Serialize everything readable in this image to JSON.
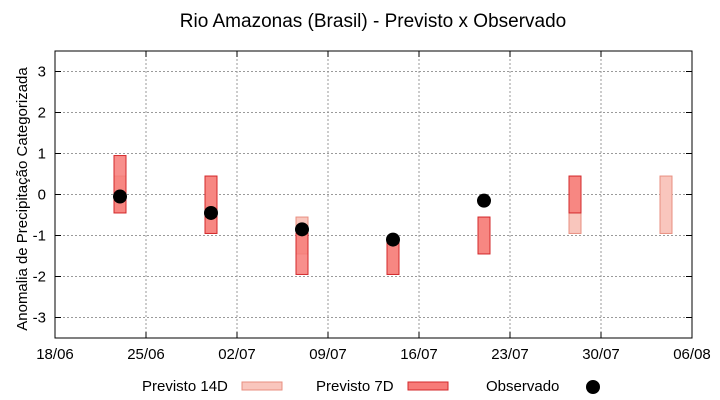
{
  "chart_data": {
    "type": "range-scatter",
    "title": "Rio Amazonas (Brasil) - Previsto x Observado",
    "xlabel": "",
    "ylabel": "Anomalia de Precipitação Categorizada",
    "ylim": [
      -3.5,
      3.5
    ],
    "yticks": [
      -3,
      -2,
      -1,
      0,
      1,
      2,
      3
    ],
    "xlim": [
      "2024-06-18",
      "2024-08-06"
    ],
    "xticks": [
      "18/06",
      "25/06",
      "02/07",
      "09/07",
      "16/07",
      "23/07",
      "30/07",
      "06/08"
    ],
    "grid": true,
    "legend_position": "bottom",
    "legend": {
      "p14": "Previsto 14D",
      "p7": "Previsto 7D",
      "obs": "Observado"
    },
    "colors": {
      "p14_fill": "#f9c6bd",
      "p14_stroke": "#e88f80",
      "p7_fill": "#f77b78",
      "p7_stroke": "#d3282b",
      "obs": "#000000"
    },
    "previsto_14d": [
      {
        "date": "2024-06-23",
        "low": -0.45,
        "high": 0.45
      },
      {
        "date": "2024-06-30",
        "low": -0.95,
        "high": 0.45
      },
      {
        "date": "2024-07-07",
        "low": -1.45,
        "high": -0.55
      },
      {
        "date": "2024-07-14",
        "low": -1.95,
        "high": -1.05
      },
      {
        "date": "2024-07-21",
        "low": -1.45,
        "high": -0.55
      },
      {
        "date": "2024-07-28",
        "low": -0.95,
        "high": 0.45
      },
      {
        "date": "2024-08-04",
        "low": -0.95,
        "high": 0.45
      }
    ],
    "previsto_7d": [
      {
        "date": "2024-06-23",
        "low": -0.45,
        "high": 0.95
      },
      {
        "date": "2024-06-30",
        "low": -0.95,
        "high": 0.45
      },
      {
        "date": "2024-07-07",
        "low": -1.95,
        "high": -0.95
      },
      {
        "date": "2024-07-14",
        "low": -1.95,
        "high": -1.05
      },
      {
        "date": "2024-07-21",
        "low": -1.45,
        "high": -0.55
      },
      {
        "date": "2024-07-28",
        "low": -0.45,
        "high": 0.45
      }
    ],
    "observado": [
      {
        "date": "2024-06-23",
        "value": -0.05
      },
      {
        "date": "2024-06-30",
        "value": -0.45
      },
      {
        "date": "2024-07-07",
        "value": -0.85
      },
      {
        "date": "2024-07-14",
        "value": -1.1
      },
      {
        "date": "2024-07-21",
        "value": -0.15
      }
    ]
  }
}
